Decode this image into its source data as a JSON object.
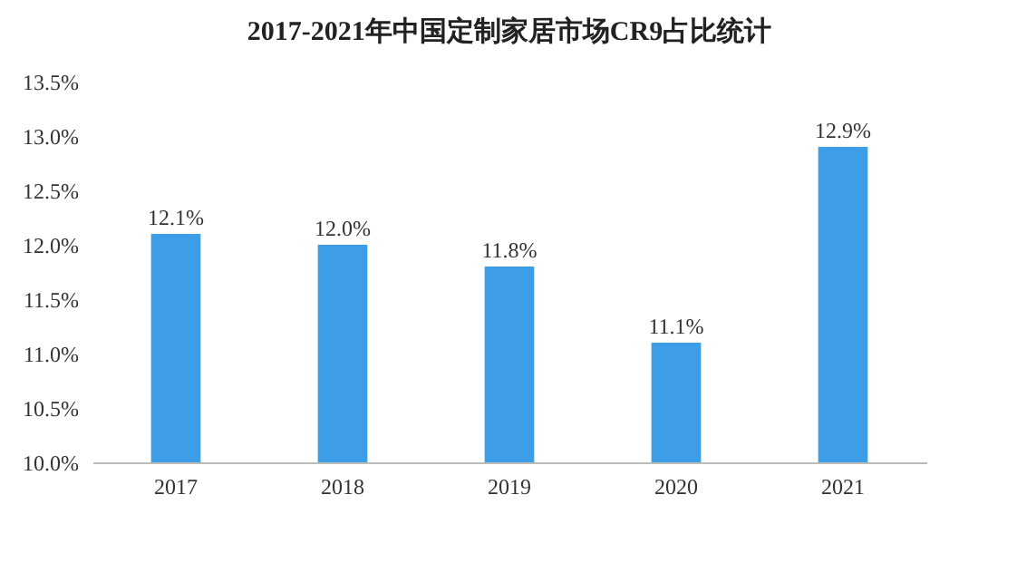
{
  "chart_data": {
    "type": "bar",
    "title": "2017-2021年中国定制家居市场CR9占比统计",
    "categories": [
      "2017",
      "2018",
      "2019",
      "2020",
      "2021"
    ],
    "values": [
      12.1,
      12.0,
      11.8,
      11.1,
      12.9
    ],
    "value_labels": [
      "12.1%",
      "12.0%",
      "11.8%",
      "11.1%",
      "12.9%"
    ],
    "color": "#3d9de6",
    "ylim": [
      10,
      13.5
    ],
    "yticks": [
      {
        "value": 10,
        "label": "10.0%"
      },
      {
        "value": 10.5,
        "label": "10.5%"
      },
      {
        "value": 11,
        "label": "11.0%"
      },
      {
        "value": 11.5,
        "label": "11.5%"
      },
      {
        "value": 12,
        "label": "12.0%"
      },
      {
        "value": 12.5,
        "label": "12.5%"
      },
      {
        "value": 13,
        "label": "13.0%"
      },
      {
        "value": 13.5,
        "label": "13.5%"
      }
    ],
    "grid": false
  }
}
